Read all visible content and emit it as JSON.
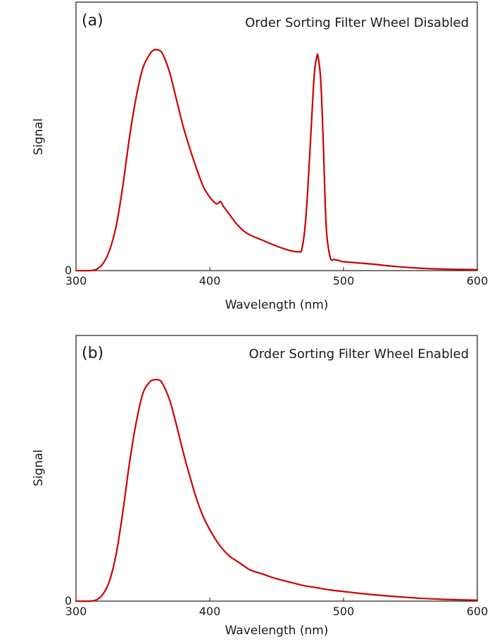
{
  "chart_data": [
    {
      "type": "line",
      "panel_label": "(a)",
      "title": "Order Sorting Filter Wheel Disabled",
      "xlabel": "Wavelength (nm)",
      "ylabel": "Signal",
      "xlim": [
        300,
        600
      ],
      "ylim": [
        0,
        1.0
      ],
      "xticks": [
        "300",
        "400",
        "500",
        "600"
      ],
      "yticks": [
        "0"
      ],
      "color": "#cc0000",
      "series": [
        {
          "x": [
            300,
            310,
            315,
            320,
            325,
            330,
            335,
            340,
            345,
            350,
            355,
            358,
            362,
            365,
            370,
            375,
            380,
            385,
            390,
            395,
            400,
            405,
            408,
            410,
            415,
            420,
            425,
            430,
            440,
            450,
            460,
            466,
            469,
            472,
            475,
            478,
            480,
            481,
            483,
            485,
            487,
            490,
            493,
            497,
            500,
            520,
            540,
            560,
            580,
            600
          ],
          "y": [
            0,
            0,
            0.005,
            0.03,
            0.09,
            0.2,
            0.38,
            0.6,
            0.78,
            0.91,
            0.97,
            0.99,
            0.99,
            0.97,
            0.89,
            0.77,
            0.65,
            0.55,
            0.46,
            0.38,
            0.33,
            0.3,
            0.31,
            0.29,
            0.25,
            0.21,
            0.18,
            0.16,
            0.135,
            0.11,
            0.09,
            0.085,
            0.1,
            0.25,
            0.55,
            0.87,
            0.96,
            0.96,
            0.85,
            0.55,
            0.2,
            0.06,
            0.05,
            0.045,
            0.04,
            0.03,
            0.018,
            0.01,
            0.006,
            0.004
          ]
        }
      ]
    },
    {
      "type": "line",
      "panel_label": "(b)",
      "title": "Order Sorting Filter Wheel Enabled",
      "xlabel": "Wavelength (nm)",
      "ylabel": "Signal",
      "xlim": [
        300,
        600
      ],
      "ylim": [
        0,
        1.0
      ],
      "xticks": [
        "300",
        "400",
        "500",
        "600"
      ],
      "yticks": [
        "0"
      ],
      "color": "#cc0000",
      "series": [
        {
          "x": [
            300,
            310,
            315,
            320,
            325,
            330,
            335,
            340,
            345,
            350,
            355,
            358,
            362,
            365,
            370,
            375,
            380,
            385,
            390,
            395,
            400,
            405,
            410,
            415,
            420,
            425,
            430,
            440,
            450,
            460,
            470,
            480,
            490,
            500,
            520,
            540,
            560,
            580,
            600
          ],
          "y": [
            0,
            0,
            0.005,
            0.03,
            0.09,
            0.21,
            0.4,
            0.62,
            0.8,
            0.93,
            0.98,
            0.99,
            0.99,
            0.97,
            0.9,
            0.79,
            0.67,
            0.56,
            0.46,
            0.38,
            0.32,
            0.27,
            0.23,
            0.2,
            0.18,
            0.16,
            0.14,
            0.12,
            0.1,
            0.085,
            0.07,
            0.06,
            0.05,
            0.043,
            0.03,
            0.02,
            0.012,
            0.007,
            0.004
          ]
        }
      ]
    }
  ]
}
